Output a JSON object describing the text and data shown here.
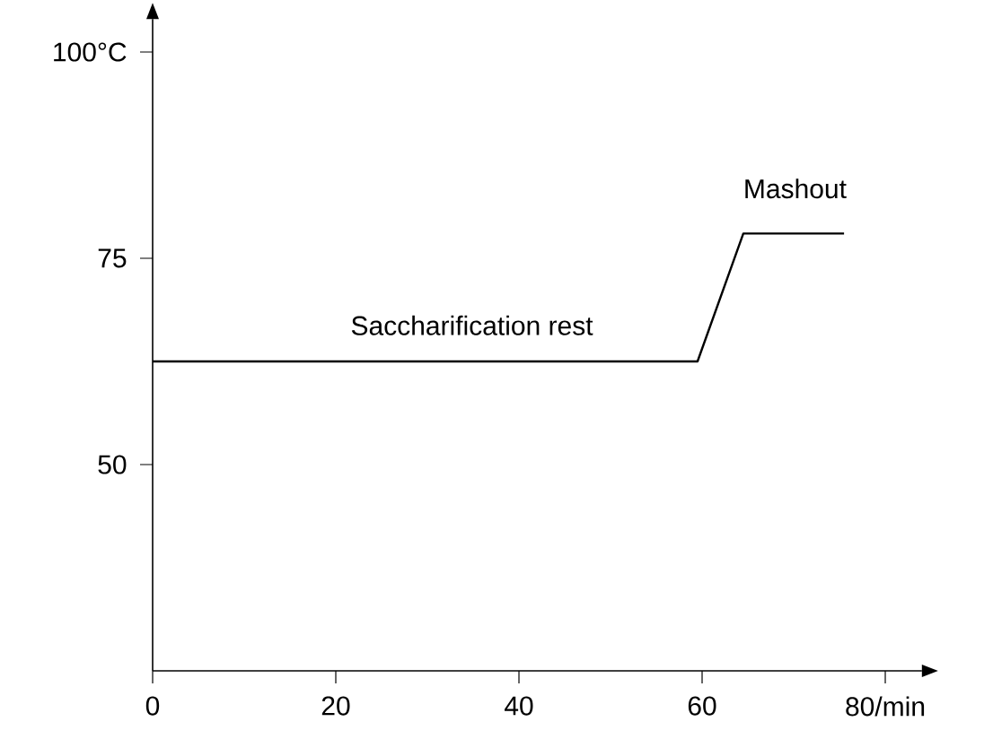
{
  "chart_data": {
    "type": "line",
    "x": [
      0,
      59.5,
      64.5,
      75.5
    ],
    "series": [
      {
        "color": "#000000",
        "values": [
          62.5,
          62.5,
          78,
          78
        ]
      }
    ],
    "xlim": [
      0,
      84
    ],
    "ylim": [
      25,
      104
    ],
    "xticks": [
      0,
      20,
      40,
      60,
      {
        "value": 80,
        "label": "80/min"
      }
    ],
    "yticks": [
      50,
      75,
      {
        "value": 100,
        "label": "100°C"
      }
    ],
    "annotations": [
      "Saccharification rest",
      "Mashout"
    ],
    "grid": false,
    "marker": "none",
    "line_style": "solid"
  }
}
